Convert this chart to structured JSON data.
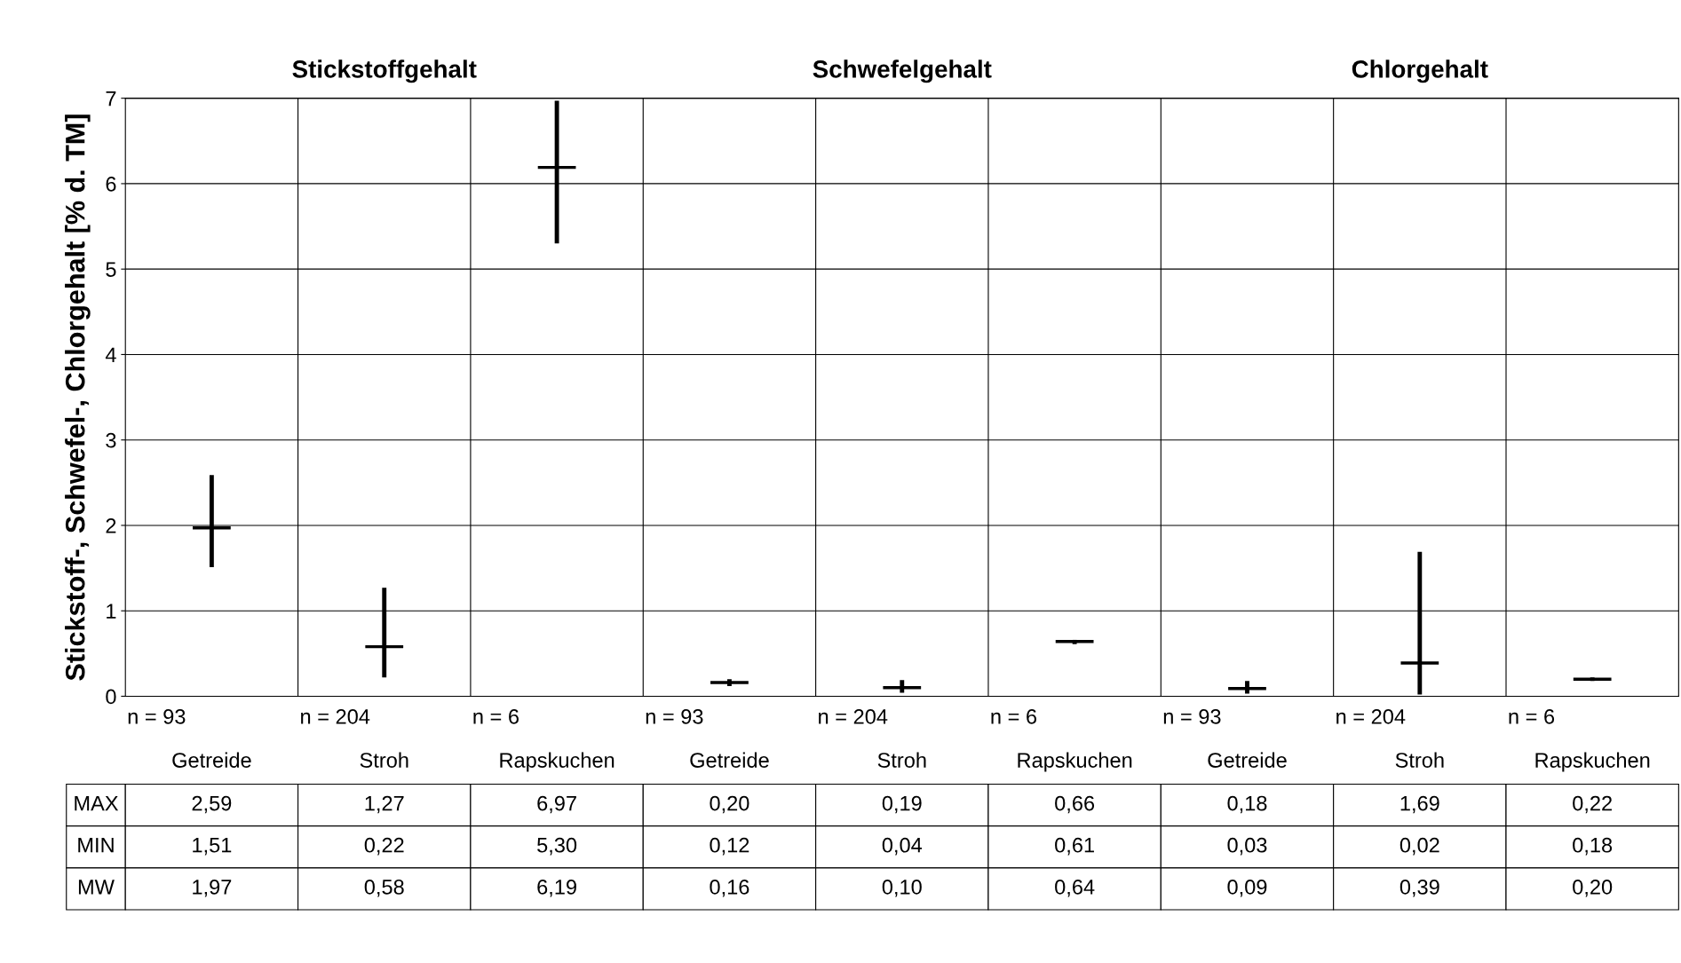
{
  "chart_data": {
    "type": "candlestick",
    "ylabel": "Stickstoff-, Schwefel-, Chlorgehalt [% d. TM]",
    "categories": [
      "Getreide",
      "Stroh",
      "Rapskuchen",
      "Getreide",
      "Stroh",
      "Rapskuchen",
      "Getreide",
      "Stroh",
      "Rapskuchen"
    ],
    "ohlc": [
      [
        1.97,
        2.59,
        1.51,
        1.97
      ],
      [
        0.58,
        1.27,
        0.22,
        0.58
      ],
      [
        6.19,
        6.97,
        5.3,
        6.19
      ],
      [
        0.16,
        0.2,
        0.12,
        0.16
      ],
      [
        0.1,
        0.19,
        0.04,
        0.1
      ],
      [
        0.64,
        0.66,
        0.61,
        0.64
      ],
      [
        0.09,
        0.18,
        0.03,
        0.09
      ],
      [
        0.39,
        1.69,
        0.02,
        0.39
      ],
      [
        0.2,
        0.22,
        0.18,
        0.2
      ]
    ],
    "color": "#000000",
    "annotations": [
      "Stickstoffgehalt",
      "Schwefelgehalt",
      "Chlorgehalt",
      "n = 93",
      "n = 204",
      "n = 6",
      "n = 93",
      "n = 204",
      "n = 6",
      "n = 93",
      "n = 204",
      "n = 6",
      "MAX",
      "2,59",
      "1,27",
      "6,97",
      "0,20",
      "0,19",
      "0,66",
      "0,18",
      "1,69",
      "0,22",
      "MIN",
      "1,51",
      "0,22",
      "5,30",
      "0,12",
      "0,04",
      "0,61",
      "0,03",
      "0,02",
      "0,18",
      "MW",
      "1,97",
      "0,58",
      "6,19",
      "0,16",
      "0,10",
      "0,64",
      "0,09",
      "0,39",
      "0,20"
    ],
    "ylim": [
      0,
      7
    ],
    "yticks": [
      0,
      1,
      2,
      3,
      4,
      5,
      6,
      7
    ],
    "grid": true,
    "legend": false
  }
}
